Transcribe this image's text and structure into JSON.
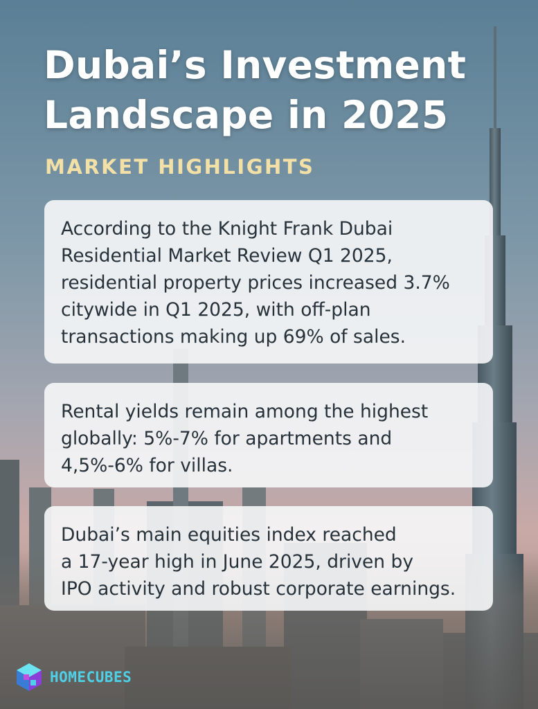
{
  "header": {
    "title_line1": "Dubai’s Investment",
    "title_line2": "Landscape in 2025",
    "subtitle": "MARKET HIGHLIGHTS"
  },
  "cards": [
    {
      "lines": [
        "According to the Knight Frank Dubai",
        "Residential Market Review Q1 2025,",
        "residential property prices increased 3.7%",
        "citywide in Q1 2025, with off-plan",
        "transactions making up 69% of sales."
      ]
    },
    {
      "lines": [
        "Rental yields remain among the highest",
        "globally: 5%-7% for apartments and",
        "4,5%-6% for villas."
      ]
    },
    {
      "lines": [
        "Dubai’s main equities index reached",
        "a 17-year high in June 2025, driven by",
        "IPO activity and robust corporate earnings."
      ]
    }
  ],
  "brand": {
    "name": "HOMECUBES",
    "logo_icon": "cube-logo-icon"
  },
  "colors": {
    "title": "#ffffff",
    "subtitle": "#f3e0a6",
    "card_bg": "#f6f7f8",
    "card_text": "#26313a",
    "brand": "#4fd0e6"
  }
}
